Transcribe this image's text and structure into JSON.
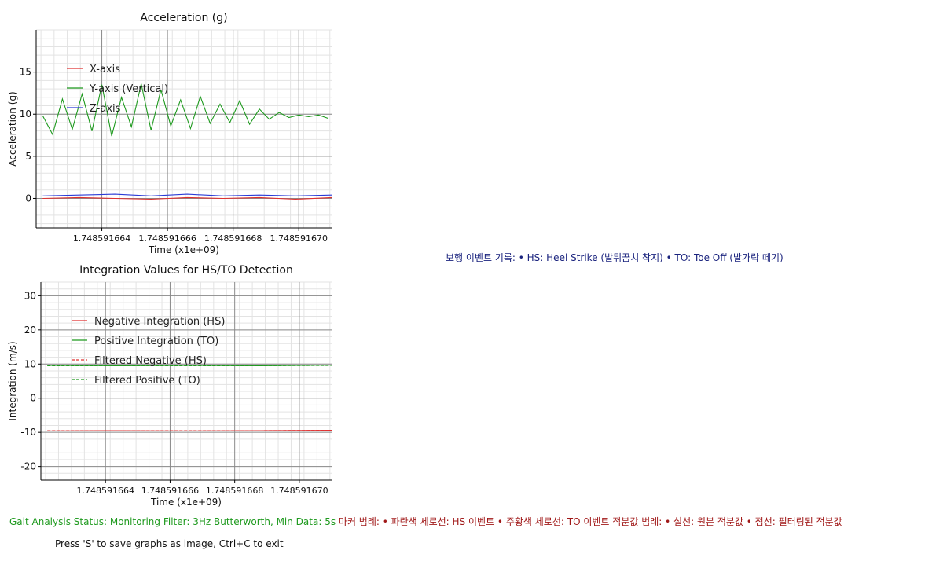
{
  "chart_data": [
    {
      "type": "line",
      "title": "Acceleration (g)",
      "xlabel": "Time (x1e+09)",
      "ylabel": "Acceleration (g)",
      "xlim": [
        1.748591662,
        1.748591671
      ],
      "ylim": [
        -3.5,
        20
      ],
      "yticks": [
        0,
        5,
        10,
        15
      ],
      "xticks": [
        1.748591664,
        1.748591666,
        1.748591668,
        1.74859167
      ],
      "xtick_labels": [
        "1.748591664",
        "1.748591666",
        "1.748591668",
        "1.748591670"
      ],
      "grid": true,
      "legend_position": "upper-left",
      "series": [
        {
          "name": "X-axis",
          "color": "#e03030",
          "style": "solid",
          "x": [
            1.7485916622,
            1.7485916633,
            1.7485916644,
            1.7485916655,
            1.7485916666,
            1.7485916677,
            1.7485916688,
            1.7485916699,
            1.748591671
          ],
          "values": [
            0.0,
            0.1,
            0.0,
            -0.1,
            0.1,
            0.0,
            0.1,
            -0.1,
            0.1
          ]
        },
        {
          "name": "Y-axis (Vertical)",
          "color": "#1f9a1f",
          "style": "solid",
          "x": [
            1.7485916622,
            1.7485916625,
            1.7485916628,
            1.7485916631,
            1.7485916634,
            1.7485916637,
            1.748591664,
            1.7485916643,
            1.7485916646,
            1.7485916649,
            1.7485916652,
            1.7485916655,
            1.7485916658,
            1.7485916661,
            1.7485916664,
            1.7485916667,
            1.748591667,
            1.7485916673,
            1.7485916676,
            1.7485916679,
            1.7485916682,
            1.7485916685,
            1.7485916688,
            1.7485916691,
            1.7485916694,
            1.7485916697,
            1.74859167,
            1.7485916703,
            1.7485916706,
            1.7485916709
          ],
          "values": [
            9.8,
            7.6,
            11.8,
            8.2,
            12.4,
            8.0,
            13.5,
            7.4,
            12.0,
            8.5,
            13.6,
            8.1,
            12.9,
            8.6,
            11.7,
            8.3,
            12.1,
            8.9,
            11.2,
            9.0,
            11.6,
            8.8,
            10.6,
            9.4,
            10.2,
            9.6,
            9.9,
            9.7,
            9.9,
            9.5
          ]
        },
        {
          "name": "Z-axis",
          "color": "#2b3bd6",
          "style": "solid",
          "x": [
            1.7485916622,
            1.7485916633,
            1.7485916644,
            1.7485916655,
            1.7485916666,
            1.7485916677,
            1.7485916688,
            1.7485916699,
            1.748591671
          ],
          "values": [
            0.3,
            0.4,
            0.5,
            0.3,
            0.5,
            0.3,
            0.4,
            0.3,
            0.4
          ]
        }
      ]
    },
    {
      "type": "line",
      "title": "Integration Values for HS/TO Detection",
      "xlabel": "Time (x1e+09)",
      "ylabel": "Integration (m/s)",
      "xlim": [
        1.748591662,
        1.748591671
      ],
      "ylim": [
        -24,
        34
      ],
      "yticks": [
        -20,
        -10,
        0,
        10,
        20,
        30
      ],
      "xticks": [
        1.748591664,
        1.748591666,
        1.748591668,
        1.74859167
      ],
      "xtick_labels": [
        "1.748591664",
        "1.748591666",
        "1.748591668",
        "1.748591670"
      ],
      "grid": true,
      "legend_position": "upper-left",
      "series": [
        {
          "name": "Negative Integration (HS)",
          "color": "#e03030",
          "style": "solid",
          "x": [
            1.7485916622,
            1.7485916644,
            1.7485916666,
            1.7485916688,
            1.748591671
          ],
          "values": [
            -9.6,
            -9.5,
            -9.6,
            -9.5,
            -9.4
          ]
        },
        {
          "name": "Positive Integration (TO)",
          "color": "#1f9a1f",
          "style": "solid",
          "x": [
            1.7485916622,
            1.7485916644,
            1.7485916666,
            1.7485916688,
            1.748591671
          ],
          "values": [
            9.6,
            9.5,
            9.6,
            9.5,
            9.7
          ]
        },
        {
          "name": "Filtered Negative (HS)",
          "color": "#e03030",
          "style": "dashed",
          "x": [
            1.7485916622,
            1.7485916644,
            1.7485916666,
            1.7485916688,
            1.748591671
          ],
          "values": [
            -9.5,
            -9.5,
            -9.5,
            -9.5,
            -9.4
          ]
        },
        {
          "name": "Filtered Positive (TO)",
          "color": "#1f9a1f",
          "style": "dashed",
          "x": [
            1.7485916622,
            1.7485916644,
            1.7485916666,
            1.7485916688,
            1.748591671
          ],
          "values": [
            9.5,
            9.5,
            9.5,
            9.5,
            9.6
          ]
        }
      ]
    }
  ],
  "status": {
    "analysis": "Gait Analysis Status: Monitoring Filter: 3Hz Butterworth, Min Data: 5s",
    "legend_note": "마커 범례: • 파란색 세로선: HS 이벤트 • 주황색 세로선: TO 이벤트 적분값 범례: • 실선: 원본 적분값 • 점선: 필터링된 적분값"
  },
  "events_text": "보행 이벤트 기록: • HS: Heel Strike (발뒤꿈치 착지) • TO: Toe Off (발가락 떼기)",
  "help_text": "Press 'S' to save graphs as image, Ctrl+C to exit"
}
